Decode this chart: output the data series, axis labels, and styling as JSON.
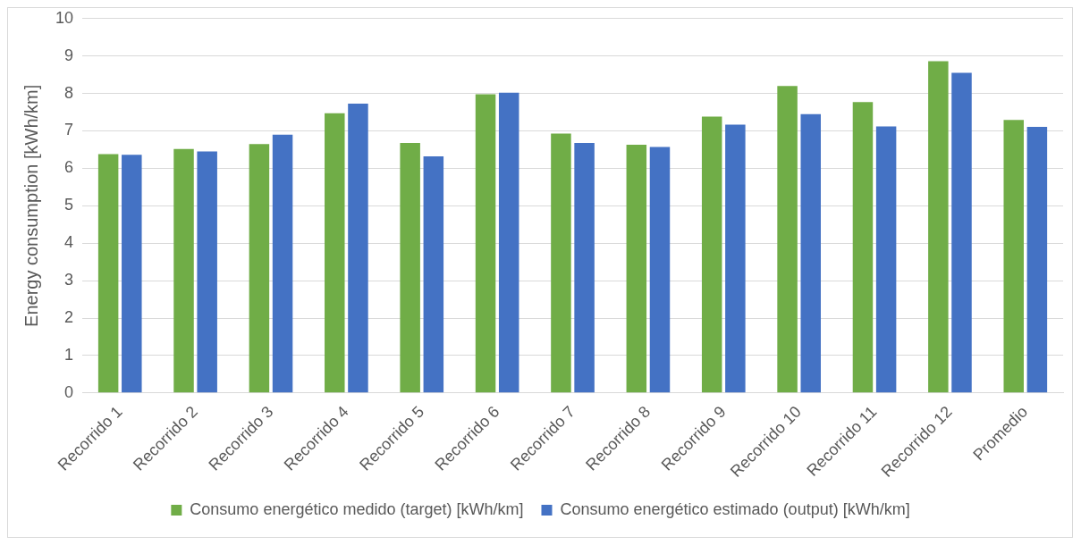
{
  "chart_data": {
    "type": "bar",
    "ylabel": "Energy consumption [kWh/km]",
    "categories": [
      "Recorrido 1",
      "Recorrido 2",
      "Recorrido 3",
      "Recorrido 4",
      "Recorrido 5",
      "Recorrido 6",
      "Recorrido 7",
      "Recorrido 8",
      "Recorrido 9",
      "Recorrido 10",
      "Recorrido 11",
      "Recorrido 12",
      "Promedio"
    ],
    "series": [
      {
        "name": "Consumo energético medido (target) [kWh/km]",
        "color": "#70ad47",
        "values": [
          6.38,
          6.52,
          6.65,
          7.47,
          6.68,
          7.98,
          6.93,
          6.63,
          7.38,
          8.2,
          7.77,
          8.86,
          7.29
        ]
      },
      {
        "name": "Consumo energético estimado (output) [kWh/km]",
        "color": "#4472c4",
        "values": [
          6.36,
          6.45,
          6.9,
          7.73,
          6.32,
          8.02,
          6.68,
          6.57,
          7.17,
          7.45,
          7.12,
          8.55,
          7.11
        ]
      }
    ],
    "ylim": [
      0,
      10
    ],
    "yticks": [
      0,
      1,
      2,
      3,
      4,
      5,
      6,
      7,
      8,
      9,
      10
    ],
    "grid": "y",
    "legend": "bottom"
  }
}
